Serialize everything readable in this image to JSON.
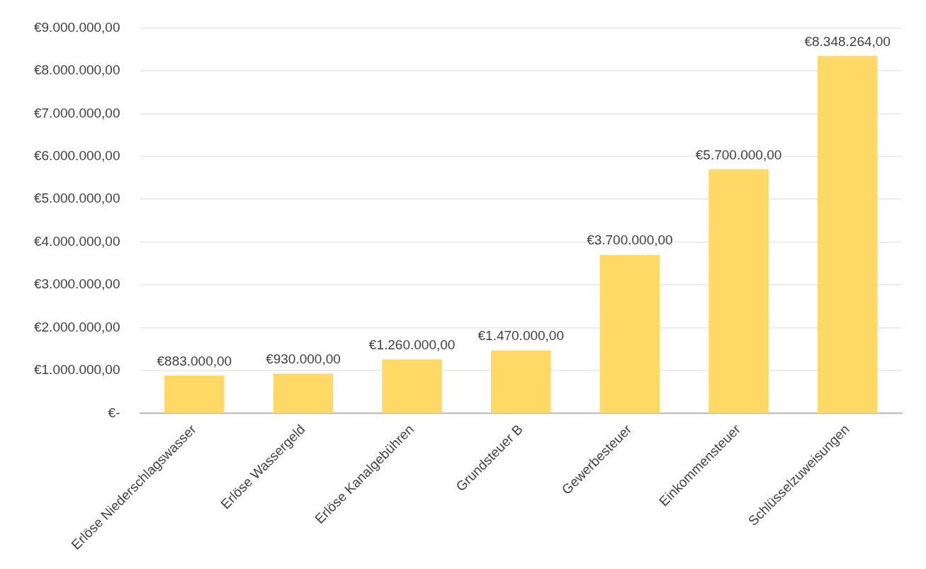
{
  "chart_data": {
    "type": "bar",
    "categories": [
      "Erlöse Niederschlagswasser",
      "Erlöse Wassergeld",
      "Erlöse Kanalgebühren",
      "Grundsteuer B",
      "Gewerbesteuer",
      "Einkommensteuer",
      "Schlüsselzuweisungen"
    ],
    "values": [
      883000,
      930000,
      1260000,
      1470000,
      3700000,
      5700000,
      8348264
    ],
    "value_labels": [
      "€883.000,00",
      "€930.000,00",
      "€1.260.000,00",
      "€1.470.000,00",
      "€3.700.000,00",
      "€5.700.000,00",
      "€8.348.264,00"
    ],
    "color": "#ffd966",
    "ylim": [
      0,
      9000000
    ],
    "yticks": [
      {
        "value": 0,
        "label": "€-"
      },
      {
        "value": 1000000,
        "label": "€1.000.000,00"
      },
      {
        "value": 2000000,
        "label": "€2.000.000,00"
      },
      {
        "value": 3000000,
        "label": "€3.000.000,00"
      },
      {
        "value": 4000000,
        "label": "€4.000.000,00"
      },
      {
        "value": 5000000,
        "label": "€5.000.000,00"
      },
      {
        "value": 6000000,
        "label": "€6.000.000,00"
      },
      {
        "value": 7000000,
        "label": "€7.000.000,00"
      },
      {
        "value": 8000000,
        "label": "€8.000.000,00"
      },
      {
        "value": 9000000,
        "label": "€9.000.000,00"
      }
    ],
    "grid": "y",
    "legend": false
  }
}
